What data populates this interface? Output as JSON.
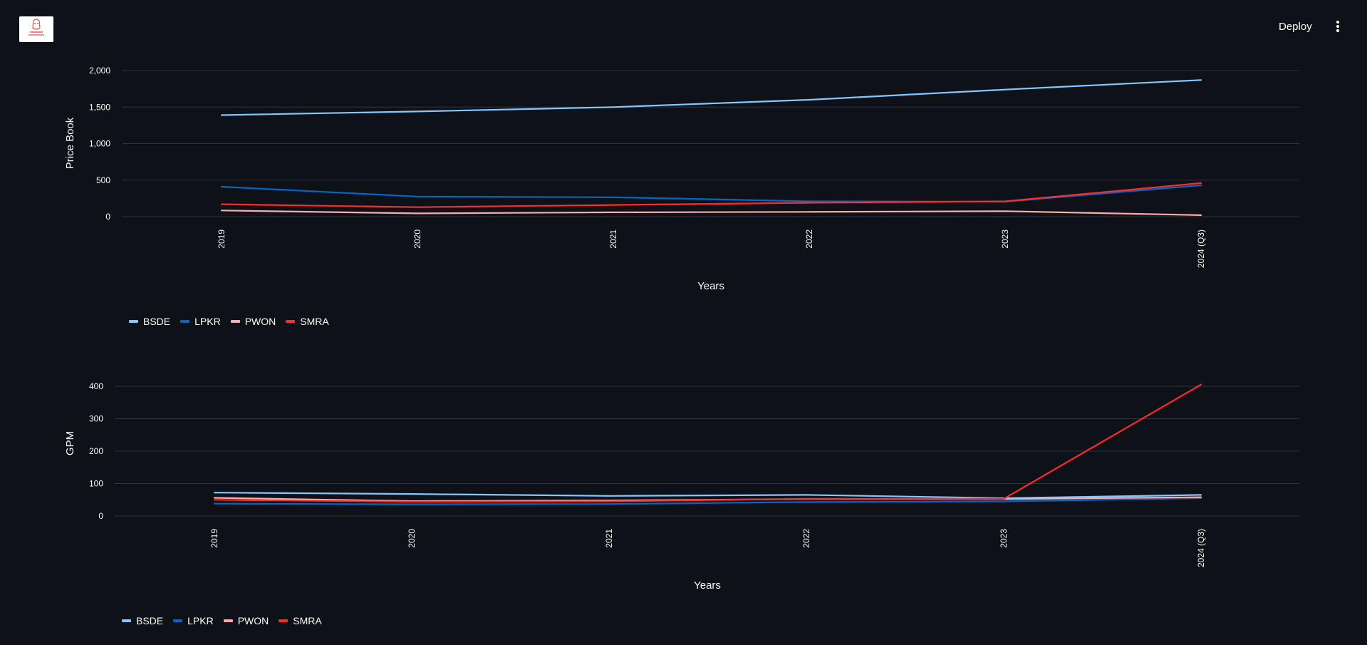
{
  "app": {
    "deploy_label": "Deploy",
    "menu_icon": "vertical-ellipsis-icon"
  },
  "colors": {
    "background": "#0e1117",
    "grid": "#31333f",
    "BSDE": "#83c9ff",
    "LPKR": "#0068c9",
    "PWON": "#ffabab",
    "SMRA": "#ff2b2b"
  },
  "chart_data": [
    {
      "type": "line",
      "xlabel": "Years",
      "ylabel": "Price Book",
      "categories": [
        "2019",
        "2020",
        "2021",
        "2022",
        "2023",
        "2024 (Q3)"
      ],
      "ylim": [
        0,
        2000
      ],
      "yticks": [
        0,
        500,
        1000,
        1500,
        2000
      ],
      "ytick_labels": [
        "0",
        "500",
        "1,000",
        "1,500",
        "2,000"
      ],
      "grid": true,
      "legend_position": "bottom-left",
      "series": [
        {
          "name": "BSDE",
          "values": [
            1390,
            1440,
            1500,
            1600,
            1740,
            1870
          ]
        },
        {
          "name": "LPKR",
          "values": [
            410,
            275,
            265,
            210,
            205,
            430
          ]
        },
        {
          "name": "PWON",
          "values": [
            85,
            45,
            60,
            65,
            75,
            20
          ]
        },
        {
          "name": "SMRA",
          "values": [
            170,
            130,
            160,
            190,
            210,
            460
          ]
        }
      ]
    },
    {
      "type": "line",
      "xlabel": "Years",
      "ylabel": "GPM",
      "categories": [
        "2019",
        "2020",
        "2021",
        "2022",
        "2023",
        "2024 (Q3)"
      ],
      "ylim": [
        0,
        400
      ],
      "yticks": [
        0,
        100,
        200,
        300,
        400
      ],
      "ytick_labels": [
        "0",
        "100",
        "200",
        "300",
        "400"
      ],
      "grid": true,
      "legend_position": "bottom-left",
      "series": [
        {
          "name": "BSDE",
          "values": [
            72,
            68,
            62,
            65,
            55,
            65
          ]
        },
        {
          "name": "LPKR",
          "values": [
            38,
            36,
            37,
            43,
            45,
            55
          ]
        },
        {
          "name": "PWON",
          "values": [
            56,
            46,
            48,
            52,
            52,
            58
          ]
        },
        {
          "name": "SMRA",
          "values": [
            50,
            44,
            45,
            53,
            53,
            405
          ]
        }
      ]
    }
  ]
}
